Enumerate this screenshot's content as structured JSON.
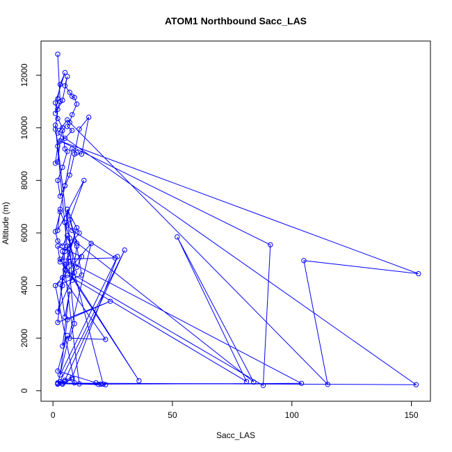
{
  "chart_data": {
    "type": "line",
    "title": "ATOM1 Northbound Sacc_LAS",
    "xlabel": "Sacc_LAS",
    "ylabel": "Altitude (m)",
    "xlim": [
      -5,
      158
    ],
    "ylim": [
      -400,
      13300
    ],
    "xticks": [
      0,
      50,
      100,
      150
    ],
    "yticks": [
      0,
      2000,
      4000,
      6000,
      8000,
      10000,
      12000
    ],
    "x_tick_labels": [
      "0",
      "50",
      "100",
      "150"
    ],
    "y_tick_labels": [
      "0",
      "2000",
      "4000",
      "6000",
      "8000",
      "10000",
      "12000"
    ],
    "grid": false,
    "marker": "open-circle",
    "series_color": "#0000ff",
    "series": [
      {
        "x": [
          2,
          3,
          1,
          2,
          3,
          5,
          1,
          2,
          4,
          1,
          2,
          4,
          6,
          5,
          7,
          8,
          9,
          10,
          8,
          7,
          6,
          8,
          5,
          3,
          2,
          1,
          2,
          4,
          5,
          6,
          4,
          2,
          3,
          5,
          8,
          10,
          12,
          15,
          11,
          9,
          7,
          5,
          3,
          2,
          13,
          7,
          10,
          6,
          11,
          5,
          3,
          2,
          12,
          10,
          6,
          4,
          2,
          1,
          3,
          5,
          7,
          9,
          2,
          4,
          6,
          8,
          10,
          12,
          3,
          5,
          7,
          4,
          6,
          2,
          18,
          20,
          2,
          5,
          8,
          4,
          9,
          1,
          16,
          2,
          3,
          30,
          5,
          8,
          27,
          3,
          6,
          24,
          2,
          4,
          22,
          7,
          9,
          1,
          6,
          8,
          26,
          3,
          36,
          5,
          10,
          4,
          6,
          81,
          52,
          84,
          9,
          6,
          21,
          104,
          7,
          5,
          88,
          91,
          3,
          153,
          105,
          115,
          6,
          2,
          152,
          4,
          22,
          2,
          19,
          11,
          4
        ],
        "y": [
          12800,
          11000,
          10550,
          11100,
          11650,
          12100,
          10950,
          10350,
          10000,
          9950,
          10700,
          11050,
          11950,
          11600,
          11350,
          11200,
          11150,
          10900,
          10500,
          10200,
          10050,
          9900,
          9600,
          9500,
          8700,
          8650,
          9300,
          9900,
          9200,
          9100,
          8500,
          8000,
          7400,
          7800,
          9200,
          9050,
          9000,
          10400,
          9950,
          9000,
          8200,
          7800,
          6900,
          6100,
          8000,
          6500,
          5600,
          6900,
          6000,
          5300,
          4900,
          5500,
          5100,
          4700,
          5900,
          5500,
          5700,
          6050,
          6800,
          6400,
          5800,
          4500,
          3000,
          4000,
          6900,
          4200,
          5500,
          4400,
          4050,
          2800,
          3800,
          1700,
          2100,
          750,
          300,
          250,
          300,
          350,
          450,
          250,
          300,
          4000,
          5600,
          250,
          350,
          5350,
          400,
          500,
          5100,
          600,
          2700,
          3400,
          2600,
          4300,
          1950,
          2000,
          2550,
          10100,
          6300,
          6100,
          5050,
          5000,
          380,
          4800,
          6200,
          4300,
          4400,
          350,
          5850,
          330,
          5700,
          5500,
          250,
          280,
          4900,
          4600,
          200,
          5550,
          9500,
          4450,
          4950,
          240,
          10300,
          9800,
          230,
          290,
          230,
          270,
          240,
          260,
          5300
        ]
      }
    ]
  }
}
